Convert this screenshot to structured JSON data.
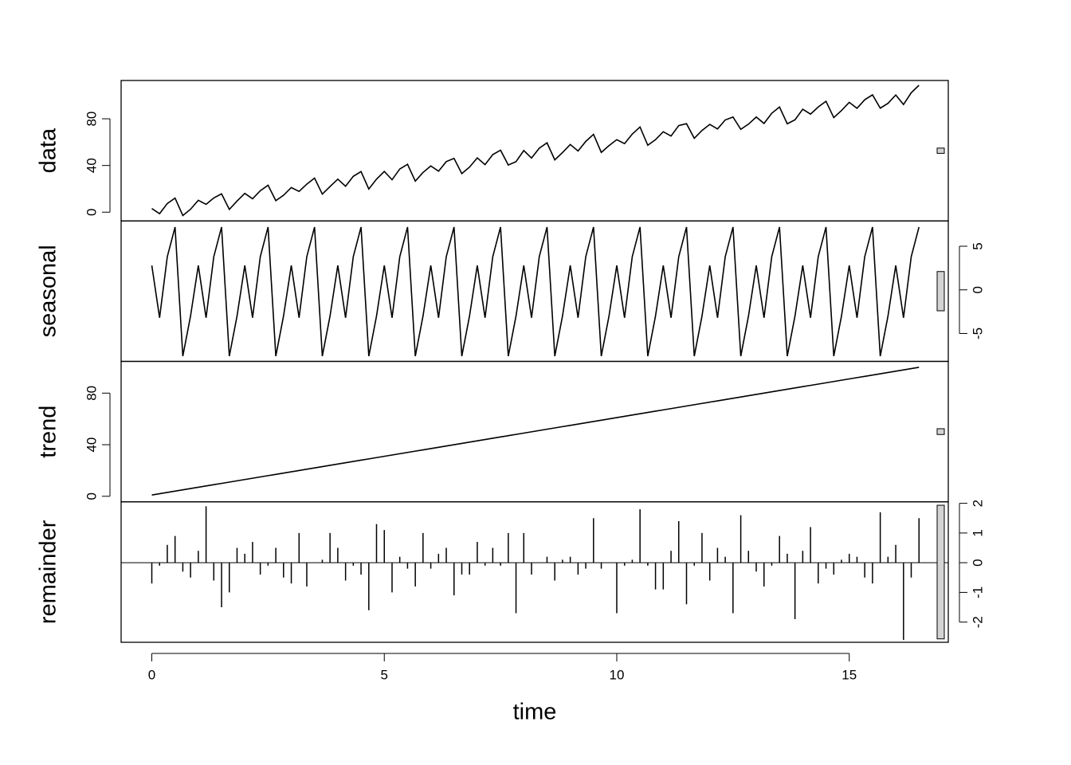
{
  "chart_data": {
    "type": "stl",
    "xlabel": "time",
    "xlim": [
      -0.66,
      17.13
    ],
    "xticks": [
      0,
      5,
      10,
      15
    ],
    "color": "#000000",
    "x": [
      0,
      0.167,
      0.333,
      0.5,
      0.667,
      0.833,
      1,
      1.167,
      1.333,
      1.5,
      1.667,
      1.833,
      2,
      2.167,
      2.333,
      2.5,
      2.667,
      2.833,
      3,
      3.167,
      3.333,
      3.5,
      3.667,
      3.833,
      4,
      4.167,
      4.333,
      4.5,
      4.667,
      4.833,
      5,
      5.167,
      5.333,
      5.5,
      5.667,
      5.833,
      6,
      6.167,
      6.333,
      6.5,
      6.667,
      6.833,
      7,
      7.167,
      7.333,
      7.5,
      7.667,
      7.833,
      8,
      8.167,
      8.333,
      8.5,
      8.667,
      8.833,
      9,
      9.167,
      9.333,
      9.5,
      9.667,
      9.833,
      10,
      10.167,
      10.333,
      10.5,
      10.667,
      10.833,
      11,
      11.167,
      11.333,
      11.5,
      11.667,
      11.833,
      12,
      12.167,
      12.333,
      12.5,
      12.667,
      12.833,
      13,
      13.167,
      13.333,
      13.5,
      13.667,
      13.833,
      14,
      14.167,
      14.333,
      14.5,
      14.667,
      14.833,
      15,
      15.167,
      15.333,
      15.5,
      15.667,
      15.833,
      16,
      16.167,
      16.333,
      16.5
    ],
    "panels": [
      {
        "name": "data",
        "type": "line",
        "axis_side": "left",
        "ylim": [
          -7.5,
          112.8
        ],
        "yticks": [
          0,
          40,
          80
        ],
        "values": [
          3.1,
          -1.3,
          7.4,
          12.1,
          -2.9,
          2.5,
          10.2,
          6.7,
          12.2,
          15.7,
          2.4,
          9.5,
          16.1,
          11.5,
          18.4,
          23.1,
          9.9,
          14.5,
          21.1,
          17.8,
          24.0,
          29.2,
          15.5,
          22.0,
          28.3,
          22.2,
          30.7,
          34.8,
          19.8,
          28.3,
          34.9,
          27.8,
          37.0,
          41.0,
          26.6,
          34.0,
          39.6,
          35.1,
          43.3,
          46.1,
          33.0,
          38.6,
          46.5,
          40.7,
          49.3,
          53.1,
          40.4,
          43.3,
          52.8,
          46.4,
          54.8,
          59.4,
          44.8,
          51.1,
          58.0,
          52.4,
          60.6,
          66.7,
          51.2,
          57.0,
          62.1,
          58.7,
          66.9,
          73.0,
          57.3,
          62.1,
          68.9,
          65.2,
          74.2,
          75.8,
          63.3,
          70.0,
          75.2,
          71.3,
          79.0,
          81.5,
          71.0,
          75.4,
          81.5,
          76.0,
          84.7,
          90.1,
          75.7,
          79.1,
          88.2,
          84.0,
          90.1,
          95.0,
          81.0,
          87.1,
          94.1,
          89.0,
          96.3,
          100.5,
          89.1,
          93.2,
          100.4,
          92.2,
          102.3,
          108.7
        ]
      },
      {
        "name": "seasonal",
        "type": "line",
        "axis_side": "right",
        "ylim": [
          -8.2,
          7.9
        ],
        "yticks": [
          -5,
          0,
          5
        ],
        "values": [
          2.8,
          -3.2,
          3.8,
          7.2,
          -7.6,
          -3.0,
          2.8,
          -3.2,
          3.8,
          7.2,
          -7.6,
          -3.0,
          2.8,
          -3.2,
          3.8,
          7.2,
          -7.6,
          -3.0,
          2.8,
          -3.2,
          3.8,
          7.2,
          -7.6,
          -3.0,
          2.8,
          -3.2,
          3.8,
          7.2,
          -7.6,
          -3.0,
          2.8,
          -3.2,
          3.8,
          7.2,
          -7.6,
          -3.0,
          2.8,
          -3.2,
          3.8,
          7.2,
          -7.6,
          -3.0,
          2.8,
          -3.2,
          3.8,
          7.2,
          -7.6,
          -3.0,
          2.8,
          -3.2,
          3.8,
          7.2,
          -7.6,
          -3.0,
          2.8,
          -3.2,
          3.8,
          7.2,
          -7.6,
          -3.0,
          2.8,
          -3.2,
          3.8,
          7.2,
          -7.6,
          -3.0,
          2.8,
          -3.2,
          3.8,
          7.2,
          -7.6,
          -3.0,
          2.8,
          -3.2,
          3.8,
          7.2,
          -7.6,
          -3.0,
          2.8,
          -3.2,
          3.8,
          7.2,
          -7.6,
          -3.0,
          2.8,
          -3.2,
          3.8,
          7.2,
          -7.6,
          -3.0,
          2.8,
          -3.2,
          3.8,
          7.2,
          -7.6,
          -3.0,
          2.8,
          -3.2,
          3.8,
          7.2
        ]
      },
      {
        "name": "trend",
        "type": "line",
        "axis_side": "left",
        "ylim": [
          -4.3,
          104.6
        ],
        "yticks": [
          0,
          40,
          80
        ],
        "values": [
          1,
          2,
          3,
          4,
          5,
          6,
          7,
          8,
          9,
          10,
          11,
          12,
          13,
          14,
          15,
          16,
          17,
          18,
          19,
          20,
          21,
          22,
          23,
          24,
          25,
          26,
          27,
          28,
          29,
          30,
          31,
          32,
          33,
          34,
          35,
          36,
          37,
          38,
          39,
          40,
          41,
          42,
          43,
          44,
          45,
          46,
          47,
          48,
          49,
          50,
          51,
          52,
          53,
          54,
          55,
          56,
          57,
          58,
          59,
          60,
          61,
          62,
          63,
          64,
          65,
          66,
          67,
          68,
          69,
          70,
          71,
          72,
          73,
          74,
          75,
          76,
          77,
          78,
          79,
          80,
          81,
          82,
          83,
          84,
          85,
          86,
          87,
          88,
          89,
          90,
          91,
          92,
          93,
          94,
          95,
          96,
          97,
          98,
          99,
          100
        ]
      },
      {
        "name": "remainder",
        "type": "spike",
        "axis_side": "right",
        "ylim": [
          -2.68,
          2.05
        ],
        "yticks": [
          -2,
          -1,
          0,
          1,
          2
        ],
        "values": [
          -0.7,
          -0.1,
          0.6,
          0.9,
          -0.3,
          -0.5,
          0.4,
          1.9,
          -0.6,
          -1.5,
          -1.0,
          0.5,
          0.3,
          0.7,
          -0.4,
          -0.1,
          0.5,
          -0.5,
          -0.7,
          1.0,
          -0.8,
          0.0,
          0.1,
          1.0,
          0.5,
          -0.6,
          -0.1,
          -0.4,
          -1.6,
          1.3,
          1.1,
          -1.0,
          0.2,
          -0.2,
          -0.8,
          1.0,
          -0.2,
          0.3,
          0.5,
          -1.1,
          -0.4,
          -0.4,
          0.7,
          -0.1,
          0.5,
          -0.1,
          1.0,
          -1.7,
          1.0,
          -0.4,
          0.0,
          0.2,
          -0.6,
          0.1,
          0.2,
          -0.4,
          -0.2,
          1.5,
          -0.2,
          0.0,
          -1.7,
          -0.1,
          0.1,
          1.8,
          -0.1,
          -0.9,
          -0.9,
          0.4,
          1.4,
          -1.4,
          -0.1,
          1.0,
          -0.6,
          0.5,
          0.2,
          -1.7,
          1.6,
          0.4,
          -0.3,
          -0.8,
          -0.1,
          0.9,
          0.3,
          -1.9,
          0.4,
          1.2,
          -0.7,
          -0.2,
          -0.4,
          0.1,
          0.3,
          0.2,
          -0.5,
          -0.7,
          1.7,
          0.2,
          0.6,
          -2.6,
          -0.5,
          1.5
        ]
      }
    ]
  }
}
